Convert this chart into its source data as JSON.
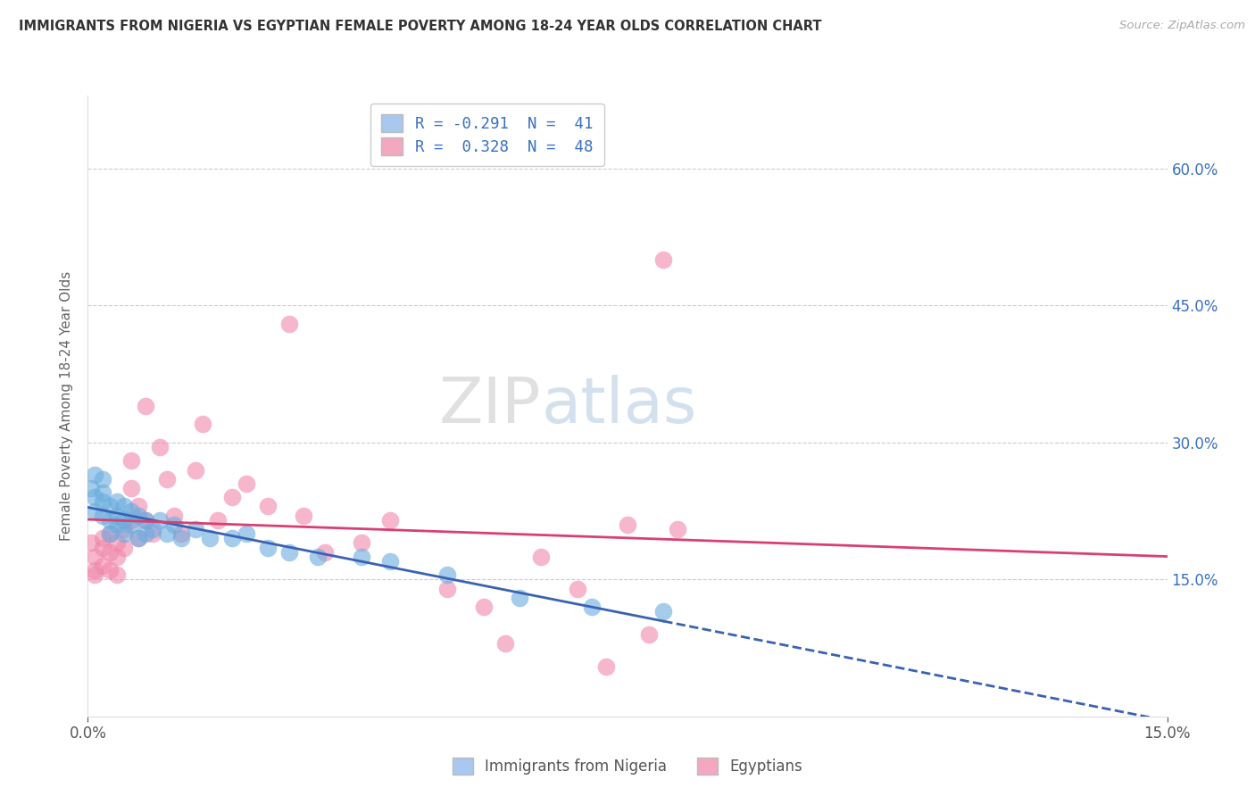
{
  "title": "IMMIGRANTS FROM NIGERIA VS EGYPTIAN FEMALE POVERTY AMONG 18-24 YEAR OLDS CORRELATION CHART",
  "source": "Source: ZipAtlas.com",
  "ylabel": "Female Poverty Among 18-24 Year Olds",
  "y_ticks": [
    0.15,
    0.3,
    0.45,
    0.6
  ],
  "y_tick_labels": [
    "15.0%",
    "30.0%",
    "45.0%",
    "60.0%"
  ],
  "x_tick_labels": [
    "0.0%",
    "15.0%"
  ],
  "xmin": 0.0,
  "xmax": 0.15,
  "ymin": 0.0,
  "ymax": 0.68,
  "legend1_label": "R = -0.291  N =  41",
  "legend2_label": "R =  0.328  N =  48",
  "legend_bottom1": "Immigrants from Nigeria",
  "legend_bottom2": "Egyptians",
  "legend_color_nigeria": "#a8c8f0",
  "legend_color_egypt": "#f4a8c0",
  "scatter_color_nigeria": "#6aacdf",
  "scatter_color_egypt": "#f088aa",
  "trend_color_nigeria": "#3a62b4",
  "trend_color_egypt": "#d84070",
  "watermark_zip": "ZIP",
  "watermark_atlas": "atlas",
  "nigeria_x": [
    0.0005,
    0.001,
    0.001,
    0.001,
    0.002,
    0.002,
    0.002,
    0.002,
    0.003,
    0.003,
    0.003,
    0.004,
    0.004,
    0.004,
    0.005,
    0.005,
    0.005,
    0.006,
    0.006,
    0.007,
    0.007,
    0.008,
    0.008,
    0.009,
    0.01,
    0.011,
    0.012,
    0.013,
    0.015,
    0.017,
    0.02,
    0.022,
    0.025,
    0.028,
    0.032,
    0.038,
    0.042,
    0.05,
    0.06,
    0.07,
    0.08
  ],
  "nigeria_y": [
    0.25,
    0.265,
    0.24,
    0.225,
    0.26,
    0.245,
    0.235,
    0.22,
    0.23,
    0.215,
    0.2,
    0.235,
    0.22,
    0.21,
    0.23,
    0.215,
    0.2,
    0.225,
    0.21,
    0.22,
    0.195,
    0.215,
    0.2,
    0.205,
    0.215,
    0.2,
    0.21,
    0.195,
    0.205,
    0.195,
    0.195,
    0.2,
    0.185,
    0.18,
    0.175,
    0.175,
    0.17,
    0.155,
    0.13,
    0.12,
    0.115
  ],
  "egypt_x": [
    0.0005,
    0.001,
    0.001,
    0.001,
    0.002,
    0.002,
    0.002,
    0.003,
    0.003,
    0.003,
    0.004,
    0.004,
    0.004,
    0.005,
    0.005,
    0.006,
    0.006,
    0.006,
    0.007,
    0.007,
    0.008,
    0.008,
    0.009,
    0.01,
    0.011,
    0.012,
    0.013,
    0.015,
    0.016,
    0.018,
    0.02,
    0.022,
    0.025,
    0.028,
    0.03,
    0.033,
    0.038,
    0.042,
    0.05,
    0.055,
    0.058,
    0.063,
    0.068,
    0.072,
    0.075,
    0.078,
    0.08,
    0.082
  ],
  "egypt_y": [
    0.19,
    0.175,
    0.16,
    0.155,
    0.195,
    0.185,
    0.165,
    0.2,
    0.18,
    0.16,
    0.19,
    0.175,
    0.155,
    0.205,
    0.185,
    0.215,
    0.28,
    0.25,
    0.23,
    0.195,
    0.34,
    0.215,
    0.2,
    0.295,
    0.26,
    0.22,
    0.2,
    0.27,
    0.32,
    0.215,
    0.24,
    0.255,
    0.23,
    0.43,
    0.22,
    0.18,
    0.19,
    0.215,
    0.14,
    0.12,
    0.08,
    0.175,
    0.14,
    0.055,
    0.21,
    0.09,
    0.5,
    0.205
  ]
}
